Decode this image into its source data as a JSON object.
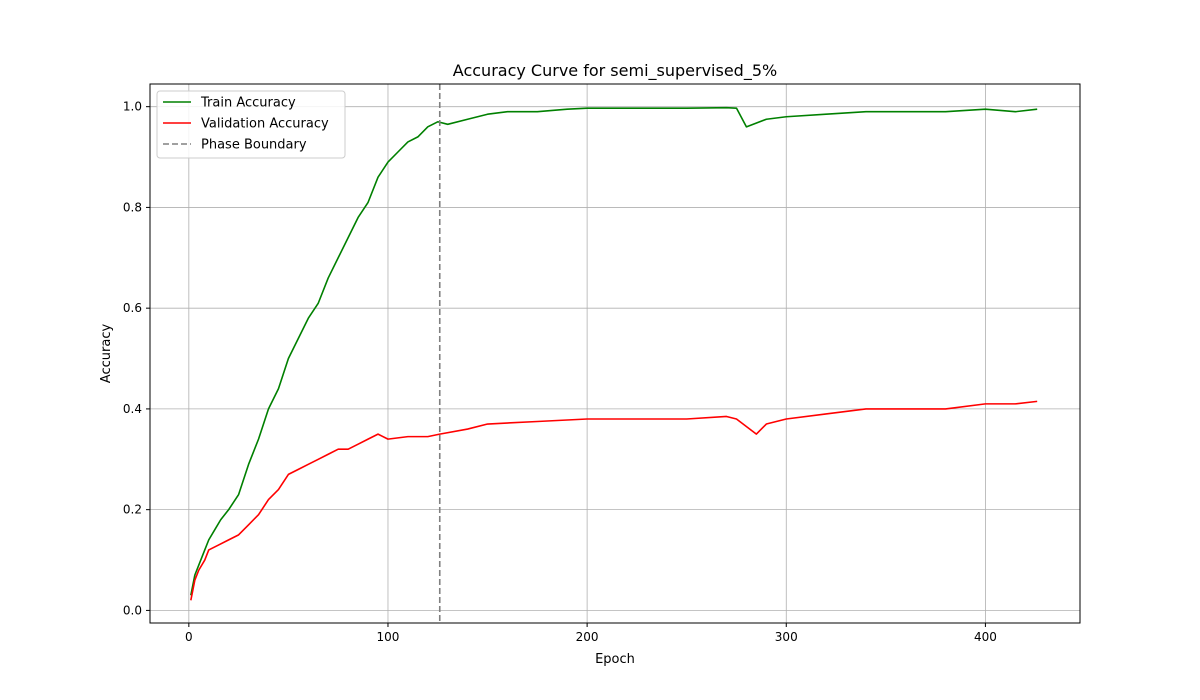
{
  "chart_data": {
    "type": "line",
    "title": "Accuracy Curve for semi_supervised_5%",
    "xlabel": "Epoch",
    "ylabel": "Accuracy",
    "xlim": [
      -19.5,
      447.5
    ],
    "ylim": [
      -0.025,
      1.045
    ],
    "xticks": [
      0,
      100,
      200,
      300,
      400
    ],
    "yticks": [
      0.0,
      0.2,
      0.4,
      0.6,
      0.8,
      1.0
    ],
    "ytick_labels": [
      "0.0",
      "0.2",
      "0.4",
      "0.6",
      "0.8",
      "1.0"
    ],
    "xtick_labels": [
      "0",
      "100",
      "200",
      "300",
      "400"
    ],
    "grid": true,
    "legend_position": "upper-left",
    "phase_boundary": {
      "name": "Phase Boundary",
      "x": 126,
      "color": "#808080",
      "style": "dashed"
    },
    "series": [
      {
        "name": "Train Accuracy",
        "color": "#008000",
        "points": [
          [
            1,
            0.03
          ],
          [
            3,
            0.07
          ],
          [
            5,
            0.09
          ],
          [
            8,
            0.12
          ],
          [
            10,
            0.14
          ],
          [
            13,
            0.16
          ],
          [
            16,
            0.18
          ],
          [
            20,
            0.2
          ],
          [
            25,
            0.23
          ],
          [
            30,
            0.29
          ],
          [
            35,
            0.34
          ],
          [
            40,
            0.4
          ],
          [
            45,
            0.44
          ],
          [
            50,
            0.5
          ],
          [
            55,
            0.54
          ],
          [
            60,
            0.58
          ],
          [
            65,
            0.61
          ],
          [
            70,
            0.66
          ],
          [
            75,
            0.7
          ],
          [
            80,
            0.74
          ],
          [
            85,
            0.78
          ],
          [
            90,
            0.81
          ],
          [
            95,
            0.86
          ],
          [
            100,
            0.89
          ],
          [
            105,
            0.91
          ],
          [
            110,
            0.93
          ],
          [
            115,
            0.94
          ],
          [
            120,
            0.96
          ],
          [
            125,
            0.97
          ],
          [
            130,
            0.965
          ],
          [
            140,
            0.975
          ],
          [
            150,
            0.985
          ],
          [
            160,
            0.99
          ],
          [
            175,
            0.99
          ],
          [
            190,
            0.995
          ],
          [
            200,
            0.997
          ],
          [
            225,
            0.997
          ],
          [
            250,
            0.997
          ],
          [
            270,
            0.998
          ],
          [
            275,
            0.997
          ],
          [
            280,
            0.96
          ],
          [
            290,
            0.975
          ],
          [
            300,
            0.98
          ],
          [
            320,
            0.985
          ],
          [
            340,
            0.99
          ],
          [
            360,
            0.99
          ],
          [
            380,
            0.99
          ],
          [
            400,
            0.995
          ],
          [
            415,
            0.99
          ],
          [
            426,
            0.995
          ]
        ]
      },
      {
        "name": "Validation Accuracy",
        "color": "#ff0000",
        "points": [
          [
            1,
            0.02
          ],
          [
            3,
            0.06
          ],
          [
            5,
            0.08
          ],
          [
            8,
            0.1
          ],
          [
            10,
            0.12
          ],
          [
            15,
            0.13
          ],
          [
            20,
            0.14
          ],
          [
            25,
            0.15
          ],
          [
            30,
            0.17
          ],
          [
            35,
            0.19
          ],
          [
            40,
            0.22
          ],
          [
            45,
            0.24
          ],
          [
            50,
            0.27
          ],
          [
            55,
            0.28
          ],
          [
            60,
            0.29
          ],
          [
            65,
            0.3
          ],
          [
            70,
            0.31
          ],
          [
            75,
            0.32
          ],
          [
            80,
            0.32
          ],
          [
            85,
            0.33
          ],
          [
            90,
            0.34
          ],
          [
            95,
            0.35
          ],
          [
            100,
            0.34
          ],
          [
            110,
            0.345
          ],
          [
            120,
            0.345
          ],
          [
            126,
            0.35
          ],
          [
            140,
            0.36
          ],
          [
            150,
            0.37
          ],
          [
            175,
            0.375
          ],
          [
            200,
            0.38
          ],
          [
            225,
            0.38
          ],
          [
            250,
            0.38
          ],
          [
            270,
            0.385
          ],
          [
            275,
            0.38
          ],
          [
            285,
            0.35
          ],
          [
            290,
            0.37
          ],
          [
            300,
            0.38
          ],
          [
            320,
            0.39
          ],
          [
            340,
            0.4
          ],
          [
            360,
            0.4
          ],
          [
            380,
            0.4
          ],
          [
            400,
            0.41
          ],
          [
            415,
            0.41
          ],
          [
            426,
            0.415
          ]
        ]
      }
    ]
  }
}
